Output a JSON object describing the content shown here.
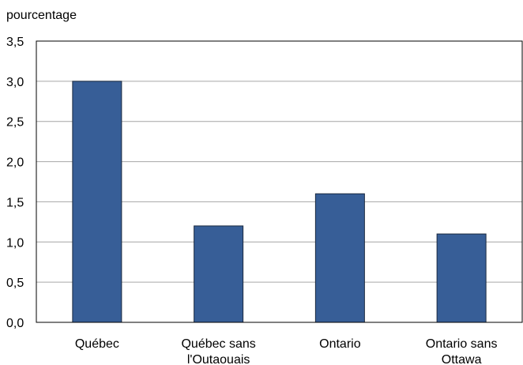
{
  "chart_data": {
    "type": "bar",
    "ylabel": "pourcentage",
    "categories": [
      [
        "Québec"
      ],
      [
        "Québec sans",
        "l'Outaouais"
      ],
      [
        "Ontario"
      ],
      [
        "Ontario sans",
        "Ottawa"
      ]
    ],
    "values": [
      3.0,
      1.2,
      1.6,
      1.1
    ],
    "ylim": [
      0,
      3.5
    ],
    "yticks": [
      "0,0",
      "0,5",
      "1,0",
      "1,5",
      "2,0",
      "2,5",
      "3,0",
      "3,5"
    ],
    "grid": true,
    "bar_color": "#375e97",
    "bar_stroke": "#1b2a40",
    "grid_color": "#a6a6a6"
  }
}
